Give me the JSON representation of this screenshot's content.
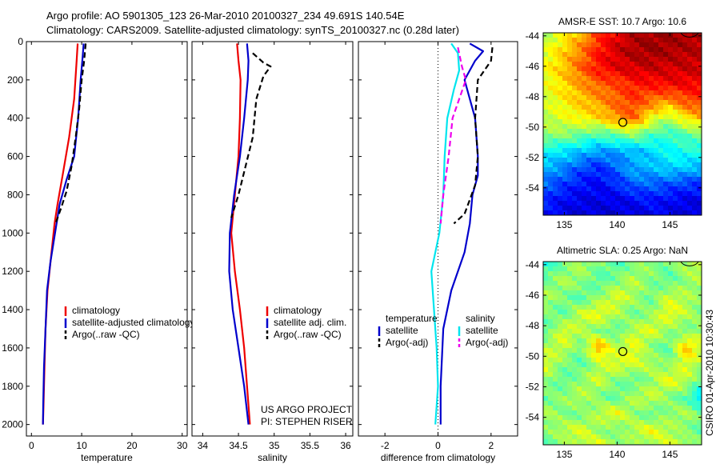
{
  "header": {
    "line1": "Argo profile: AO 5901305_123 26-Mar-2010 20100327_234 49.691S 140.54E",
    "line2": "Climatology: CARS2009. Satellite-adjusted climatology: synTS_20100327.nc (0.28d later)"
  },
  "side_text": "CSIRO 01-Apr-2010 10:30:43",
  "colors": {
    "red": "#ee0000",
    "blue": "#0000cc",
    "black": "#000000",
    "cyan": "#00e5ee",
    "magenta": "#ee00ee"
  },
  "chart_data": [
    {
      "type": "line",
      "xlabel": "temperature",
      "xlim": [
        -1,
        31
      ],
      "ylim": [
        2060,
        0
      ],
      "xticks": [
        0,
        10,
        20,
        30
      ],
      "yticks": [
        0,
        200,
        400,
        600,
        800,
        1000,
        1200,
        1400,
        1600,
        1800,
        2000
      ],
      "legend_position": "lower-right",
      "series": [
        {
          "name": "climatology",
          "color": "red",
          "dash": "solid",
          "points": [
            [
              9.2,
              10
            ],
            [
              9.0,
              100
            ],
            [
              8.5,
              300
            ],
            [
              7.5,
              500
            ],
            [
              6.2,
              700
            ],
            [
              5.2,
              850
            ],
            [
              4.6,
              950
            ],
            [
              4.0,
              1100
            ],
            [
              3.2,
              1300
            ],
            [
              2.8,
              1500
            ],
            [
              2.6,
              1700
            ],
            [
              2.4,
              1900
            ],
            [
              2.3,
              2000
            ]
          ]
        },
        {
          "name": "satellite-adjusted climatology",
          "color": "blue",
          "dash": "solid",
          "points": [
            [
              10.4,
              10
            ],
            [
              10.2,
              80
            ],
            [
              9.8,
              200
            ],
            [
              9.3,
              400
            ],
            [
              8.5,
              600
            ],
            [
              7.0,
              720
            ],
            [
              5.6,
              850
            ],
            [
              4.7,
              1000
            ],
            [
              3.8,
              1150
            ],
            [
              3.1,
              1300
            ],
            [
              2.8,
              1500
            ],
            [
              2.5,
              1700
            ],
            [
              2.35,
              1900
            ],
            [
              2.3,
              2000
            ]
          ]
        },
        {
          "name": "Argo(..raw -QC)",
          "color": "black",
          "dash": "dashed",
          "points": [
            [
              10.8,
              10
            ],
            [
              10.5,
              100
            ],
            [
              10.0,
              200
            ],
            [
              9.5,
              350
            ],
            [
              8.8,
              500
            ],
            [
              8.0,
              650
            ],
            [
              7.0,
              780
            ],
            [
              5.9,
              870
            ],
            [
              4.8,
              950
            ]
          ]
        }
      ]
    },
    {
      "type": "line",
      "xlabel": "salinity",
      "xlim": [
        33.85,
        36.1
      ],
      "ylim": [
        2060,
        0
      ],
      "xticks": [
        34,
        34.5,
        35,
        35.5,
        36
      ],
      "xtick_labels": [
        "34",
        "34.5",
        "35",
        "35.5",
        "36"
      ],
      "yticks": [
        0,
        200,
        400,
        600,
        800,
        1000,
        1200,
        1400,
        1600,
        1800,
        2000
      ],
      "legend_position": "lower-right",
      "series": [
        {
          "name": "climatology",
          "color": "red",
          "dash": "solid",
          "points": [
            [
              34.48,
              10
            ],
            [
              34.5,
              100
            ],
            [
              34.53,
              200
            ],
            [
              34.52,
              400
            ],
            [
              34.5,
              600
            ],
            [
              34.45,
              800
            ],
            [
              34.4,
              1000
            ],
            [
              34.45,
              1200
            ],
            [
              34.52,
              1400
            ],
            [
              34.58,
              1600
            ],
            [
              34.62,
              1800
            ],
            [
              34.66,
              2000
            ]
          ]
        },
        {
          "name": "satellite adj. clim.",
          "color": "blue",
          "dash": "solid",
          "points": [
            [
              34.62,
              10
            ],
            [
              34.64,
              100
            ],
            [
              34.63,
              200
            ],
            [
              34.58,
              400
            ],
            [
              34.52,
              600
            ],
            [
              34.44,
              800
            ],
            [
              34.38,
              1000
            ],
            [
              34.37,
              1200
            ],
            [
              34.42,
              1400
            ],
            [
              34.5,
              1600
            ],
            [
              34.58,
              1800
            ],
            [
              34.64,
              2000
            ]
          ]
        },
        {
          "name": "Argo(..raw -QC)",
          "color": "black",
          "dash": "dashed",
          "points": [
            [
              34.7,
              60
            ],
            [
              34.85,
              110
            ],
            [
              34.95,
              130
            ],
            [
              34.85,
              180
            ],
            [
              34.75,
              300
            ],
            [
              34.7,
              500
            ],
            [
              34.6,
              650
            ],
            [
              34.5,
              800
            ],
            [
              34.4,
              920
            ]
          ]
        }
      ]
    },
    {
      "type": "line",
      "xlabel": "difference from climatology",
      "xlim": [
        -3,
        3
      ],
      "ylim": [
        2060,
        0
      ],
      "xticks": [
        -2,
        0,
        2
      ],
      "yticks": [
        0,
        200,
        400,
        600,
        800,
        1000,
        1200,
        1400,
        1600,
        1800,
        2000
      ],
      "zero_line": "dotted",
      "legend_position": "lower-center",
      "legend_headers": [
        "temperature",
        "salinity"
      ],
      "series": [
        {
          "name": "satellite",
          "group": "temperature",
          "color": "blue",
          "dash": "solid",
          "points": [
            [
              1.2,
              10
            ],
            [
              1.7,
              50
            ],
            [
              1.4,
              100
            ],
            [
              1.0,
              200
            ],
            [
              1.4,
              400
            ],
            [
              1.5,
              600
            ],
            [
              1.5,
              700
            ],
            [
              1.3,
              800
            ],
            [
              1.2,
              950
            ],
            [
              1.0,
              1100
            ],
            [
              0.5,
              1300
            ],
            [
              0.2,
              1500
            ],
            [
              0.1,
              1800
            ],
            [
              0.1,
              2000
            ]
          ]
        },
        {
          "name": "Argo(-adj)",
          "group": "temperature",
          "color": "black",
          "dash": "dashed",
          "points": [
            [
              2.05,
              30
            ],
            [
              2.0,
              100
            ],
            [
              1.5,
              200
            ],
            [
              1.4,
              400
            ],
            [
              1.5,
              600
            ],
            [
              1.4,
              750
            ],
            [
              1.0,
              900
            ],
            [
              0.6,
              950
            ]
          ]
        },
        {
          "name": "satellite",
          "group": "salinity",
          "color": "cyan",
          "dash": "solid",
          "points": [
            [
              0.5,
              10
            ],
            [
              0.75,
              60
            ],
            [
              0.8,
              150
            ],
            [
              0.6,
              250
            ],
            [
              0.35,
              400
            ],
            [
              0.25,
              600
            ],
            [
              0.2,
              800
            ],
            [
              0.05,
              1000
            ],
            [
              -0.25,
              1200
            ],
            [
              -0.15,
              1400
            ],
            [
              -0.05,
              1600
            ],
            [
              0.0,
              1800
            ],
            [
              -0.1,
              2000
            ]
          ]
        },
        {
          "name": "Argo(-adj)",
          "group": "salinity",
          "color": "magenta",
          "dash": "dashed",
          "points": [
            [
              0.75,
              30
            ],
            [
              0.9,
              130
            ],
            [
              1.05,
              200
            ],
            [
              0.55,
              400
            ],
            [
              0.4,
              600
            ],
            [
              0.2,
              800
            ],
            [
              0.1,
              950
            ]
          ]
        }
      ]
    },
    {
      "type": "heatmap",
      "title": "AMSR-E SST: 10.7 Argo: 10.6",
      "xlim": [
        133,
        148
      ],
      "ylim": [
        -55.8,
        -43.8
      ],
      "xticks": [
        135,
        140,
        145
      ],
      "yticks": [
        -44,
        -46,
        -48,
        -50,
        -52,
        -54
      ],
      "colormap": "jet",
      "marker": [
        140.54,
        -49.691
      ],
      "value_rows_north_to_south": [
        [
          0.55,
          0.62,
          0.7,
          0.82,
          0.9,
          0.95,
          0.97,
          0.97,
          0.96,
          0.95
        ],
        [
          0.6,
          0.67,
          0.75,
          0.86,
          0.92,
          0.96,
          0.97,
          0.96,
          0.95,
          0.94
        ],
        [
          0.62,
          0.68,
          0.78,
          0.86,
          0.9,
          0.92,
          0.93,
          0.92,
          0.93,
          0.92
        ],
        [
          0.6,
          0.66,
          0.72,
          0.78,
          0.8,
          0.85,
          0.86,
          0.88,
          0.88,
          0.88
        ],
        [
          0.58,
          0.63,
          0.68,
          0.72,
          0.78,
          0.82,
          0.76,
          0.72,
          0.8,
          0.82
        ],
        [
          0.56,
          0.6,
          0.63,
          0.66,
          0.73,
          0.78,
          0.62,
          0.55,
          0.65,
          0.7
        ],
        [
          0.52,
          0.52,
          0.48,
          0.45,
          0.48,
          0.52,
          0.45,
          0.42,
          0.46,
          0.5
        ],
        [
          0.38,
          0.35,
          0.32,
          0.28,
          0.28,
          0.3,
          0.34,
          0.38,
          0.4,
          0.4
        ],
        [
          0.3,
          0.26,
          0.2,
          0.16,
          0.22,
          0.3,
          0.3,
          0.34,
          0.32,
          0.3
        ],
        [
          0.22,
          0.18,
          0.14,
          0.12,
          0.16,
          0.22,
          0.22,
          0.2,
          0.18,
          0.16
        ],
        [
          0.16,
          0.12,
          0.1,
          0.1,
          0.1,
          0.12,
          0.14,
          0.12,
          0.1,
          0.1
        ],
        [
          0.12,
          0.1,
          0.08,
          0.08,
          0.08,
          0.08,
          0.1,
          0.1,
          0.08,
          0.08
        ]
      ]
    },
    {
      "type": "heatmap",
      "title": "Altimetric SLA: 0.25 Argo: NaN",
      "xlim": [
        133,
        148
      ],
      "ylim": [
        -55.8,
        -43.8
      ],
      "xticks": [
        135,
        140,
        145
      ],
      "yticks": [
        -44,
        -46,
        -48,
        -50,
        -52,
        -54
      ],
      "colormap": "jet",
      "marker": [
        140.54,
        -49.691
      ],
      "value_rows_north_to_south": [
        [
          0.42,
          0.48,
          0.55,
          0.5,
          0.45,
          0.5,
          0.52,
          0.48,
          0.55,
          0.58
        ],
        [
          0.48,
          0.55,
          0.52,
          0.45,
          0.5,
          0.56,
          0.5,
          0.46,
          0.52,
          0.55
        ],
        [
          0.55,
          0.5,
          0.45,
          0.52,
          0.6,
          0.54,
          0.48,
          0.58,
          0.55,
          0.5
        ],
        [
          0.5,
          0.46,
          0.58,
          0.62,
          0.55,
          0.48,
          0.52,
          0.62,
          0.56,
          0.48
        ],
        [
          0.46,
          0.6,
          0.55,
          0.5,
          0.46,
          0.56,
          0.6,
          0.52,
          0.48,
          0.56
        ],
        [
          0.55,
          0.58,
          0.48,
          0.72,
          0.55,
          0.62,
          0.5,
          0.46,
          0.7,
          0.55
        ],
        [
          0.6,
          0.5,
          0.46,
          0.55,
          0.6,
          0.58,
          0.55,
          0.5,
          0.6,
          0.52
        ],
        [
          0.52,
          0.46,
          0.52,
          0.58,
          0.5,
          0.46,
          0.52,
          0.62,
          0.56,
          0.45
        ],
        [
          0.48,
          0.52,
          0.56,
          0.5,
          0.46,
          0.55,
          0.58,
          0.5,
          0.46,
          0.3
        ],
        [
          0.55,
          0.5,
          0.48,
          0.56,
          0.62,
          0.52,
          0.46,
          0.52,
          0.55,
          0.48
        ],
        [
          0.5,
          0.56,
          0.6,
          0.52,
          0.48,
          0.56,
          0.62,
          0.55,
          0.5,
          0.46
        ],
        [
          0.46,
          0.5,
          0.55,
          0.62,
          0.55,
          0.5,
          0.52,
          0.6,
          0.56,
          0.5
        ]
      ]
    }
  ],
  "footer": {
    "project": "US ARGO PROJECT",
    "pi": "PI: STEPHEN RISER"
  }
}
